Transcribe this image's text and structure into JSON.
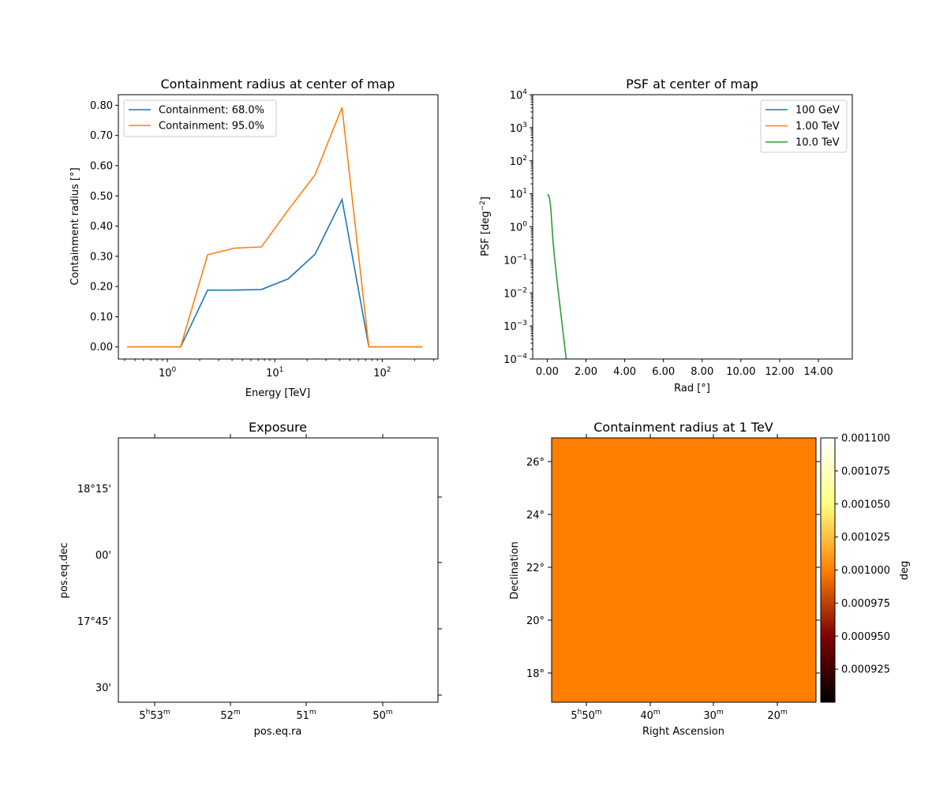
{
  "chart_data": [
    {
      "type": "line",
      "title": "Containment radius at center of map",
      "xlabel": "Energy [TeV]",
      "ylabel": "Containment radius [°]",
      "xscale": "log",
      "xlim": [
        0.35,
        330
      ],
      "ylim": [
        -0.04,
        0.835
      ],
      "xticks": [
        {
          "v": 1,
          "b": "10",
          "e": "0"
        },
        {
          "v": 10,
          "b": "10",
          "e": "1"
        },
        {
          "v": 100,
          "b": "10",
          "e": "2"
        }
      ],
      "yticks": [
        0.0,
        0.1,
        0.2,
        0.3,
        0.4,
        0.5,
        0.6,
        0.7,
        0.8
      ],
      "yticklabels": [
        "0.00",
        "0.10",
        "0.20",
        "0.30",
        "0.40",
        "0.50",
        "0.60",
        "0.70",
        "0.80"
      ],
      "legend": "upper-left",
      "x": [
        0.422,
        0.75,
        1.33,
        2.37,
        4.22,
        7.5,
        13.3,
        23.7,
        42.2,
        75.0,
        133,
        237
      ],
      "series": [
        {
          "name": "Containment: 68.0%",
          "color": "#1f77b4",
          "values": [
            0,
            0,
            0,
            0.188,
            0.188,
            0.19,
            0.225,
            0.307,
            0.488,
            0,
            0,
            0
          ]
        },
        {
          "name": "Containment: 95.0%",
          "color": "#ff7f0e",
          "values": [
            0,
            0,
            0,
            0.305,
            0.327,
            0.331,
            0.453,
            0.57,
            0.793,
            0,
            0,
            0
          ]
        }
      ]
    },
    {
      "type": "line",
      "title": "PSF at center of map",
      "xlabel": "Rad [°]",
      "ylabel_base": "PSF [deg",
      "ylabel_sup": "−2",
      "ylabel_end": "]",
      "yscale": "log",
      "xlim": [
        -0.75,
        15.75
      ],
      "ylim": [
        0.0001,
        10000
      ],
      "xticks": [
        0,
        2,
        4,
        6,
        8,
        10,
        12,
        14
      ],
      "xticklabels": [
        "0.00",
        "2.00",
        "4.00",
        "6.00",
        "8.00",
        "10.00",
        "12.00",
        "14.00"
      ],
      "yticks": [
        {
          "v": -4,
          "b": "10",
          "e": "−4"
        },
        {
          "v": -3,
          "b": "10",
          "e": "−3"
        },
        {
          "v": -2,
          "b": "10",
          "e": "−2"
        },
        {
          "v": -1,
          "b": "10",
          "e": "−1"
        },
        {
          "v": 0,
          "b": "10",
          "e": "0"
        },
        {
          "v": 1,
          "b": "10",
          "e": "1"
        },
        {
          "v": 2,
          "b": "10",
          "e": "2"
        },
        {
          "v": 3,
          "b": "10",
          "e": "3"
        },
        {
          "v": 4,
          "b": "10",
          "e": "4"
        }
      ],
      "legend": "upper-right",
      "series": [
        {
          "name": "100 GeV",
          "color": "#1f77b4",
          "x": [],
          "values": []
        },
        {
          "name": "1.00 TeV",
          "color": "#ff7f0e",
          "x": [],
          "values": []
        },
        {
          "name": "10.0 TeV",
          "color": "#2ca02c",
          "x": [
            0.0,
            0.05,
            0.1,
            0.15,
            0.2,
            0.25,
            0.3,
            0.4,
            0.5,
            0.6,
            0.7,
            0.8,
            0.9,
            1.0
          ],
          "values": [
            9.5,
            9.2,
            8.0,
            5.5,
            2.8,
            1.0,
            0.35,
            0.09,
            0.025,
            0.008,
            0.0025,
            0.0008,
            0.00025,
            8e-05
          ]
        }
      ]
    },
    {
      "type": "heatmap",
      "title": "Exposure",
      "xlabel": "pos.eq.ra",
      "ylabel": "pos.eq.dec",
      "xticks": [
        {
          "h": "5",
          "hs": "h",
          "m": "53",
          "ms": "m"
        },
        {
          "m": "52",
          "ms": "m"
        },
        {
          "m": "51",
          "ms": "m"
        },
        {
          "m": "50",
          "ms": "m"
        }
      ],
      "yticks": [
        "18°15'",
        "00'",
        "17°45'",
        "30'"
      ],
      "values": "empty"
    },
    {
      "type": "heatmap",
      "title": "Containment radius at 1 TeV",
      "xlabel": "Right Ascension",
      "ylabel": "Declination",
      "xticks": [
        {
          "h": "5",
          "hs": "h",
          "m": "50",
          "ms": "m"
        },
        {
          "m": "40",
          "ms": "m"
        },
        {
          "m": "30",
          "ms": "m"
        },
        {
          "m": "20",
          "ms": "m"
        }
      ],
      "yticks": [
        "26°",
        "24°",
        "22°",
        "20°",
        "18°"
      ],
      "fill_value": 0.001,
      "fill_color": "#ff8000",
      "colorbar": {
        "label": "deg",
        "min": 0.0009,
        "max": 0.0011,
        "ticks": [
          0.0011,
          0.001075,
          0.00105,
          0.001025,
          0.001,
          0.000975,
          0.00095,
          0.000925
        ],
        "ticklabels": [
          "0.001100",
          "0.001075",
          "0.001050",
          "0.001025",
          "0.001000",
          "0.000975",
          "0.000950",
          "0.000925"
        ]
      }
    }
  ]
}
